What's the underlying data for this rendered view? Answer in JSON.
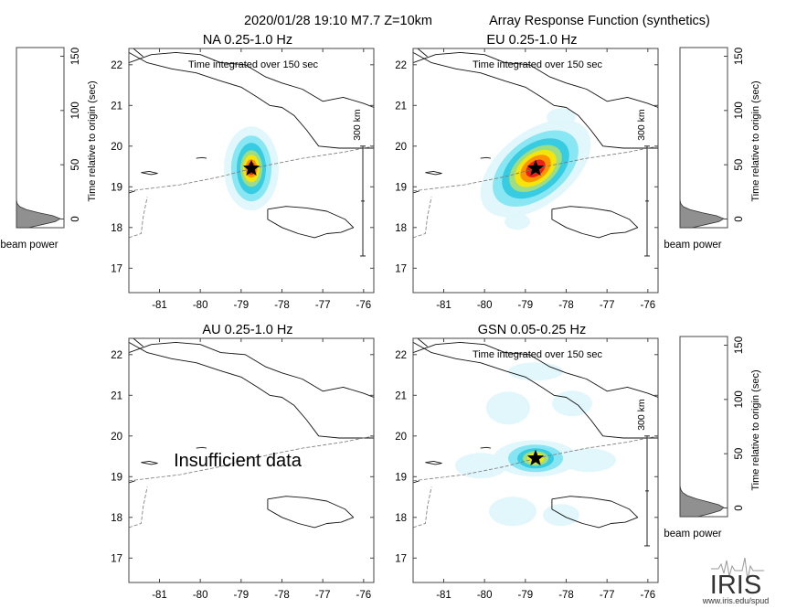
{
  "header": {
    "event": "2020/01/28 19:10  M7.7  Z=10km",
    "title": "Array Response Function (synthetics)"
  },
  "axis_labels": {
    "beam_ylabel": "Time relative to origin (sec)",
    "beam_xlabel": "beam power",
    "scale_bar": "300 km"
  },
  "insufficient_text": "Insufficient data",
  "logo": {
    "text": "IRIS",
    "url": "www.iris.edu/spud"
  },
  "colors": {
    "outer": "#dff6fb",
    "cyan": "#7fe3f2",
    "mid": "#2fc9e0",
    "green": "#a8e07a",
    "yellow": "#ffe600",
    "orange": "#ff8a00",
    "red": "#e8161c",
    "beam_fill": "#909090"
  },
  "chart_data": [
    {
      "type": "heatmap",
      "id": "NA",
      "title": "NA  0.25-1.0 Hz",
      "subtitle": "Time integrated over 150 sec",
      "xlim": [
        -81.75,
        -75.75
      ],
      "ylim": [
        16.4,
        22.4
      ],
      "x_ticks": [
        -81,
        -80,
        -79,
        -78,
        -77,
        -76
      ],
      "y_ticks": [
        17,
        18,
        19,
        20,
        21,
        22
      ],
      "epicenter": {
        "lon": -78.75,
        "lat": 19.45
      },
      "peak_level": "red",
      "beam": {
        "ylabel": "Time relative to origin (sec)",
        "y_ticks": [
          0,
          50,
          100,
          150
        ],
        "ylim": [
          -8,
          158
        ],
        "peak_time": 0,
        "width": 5,
        "side": "left"
      }
    },
    {
      "type": "heatmap",
      "id": "EU",
      "title": "EU  0.25-1.0 Hz",
      "subtitle": "Time integrated over 150 sec",
      "xlim": [
        -81.75,
        -75.75
      ],
      "ylim": [
        16.4,
        22.4
      ],
      "x_ticks": [
        -81,
        -80,
        -79,
        -78,
        -77,
        -76
      ],
      "y_ticks": [
        17,
        18,
        19,
        20,
        21,
        22
      ],
      "epicenter": {
        "lon": -78.75,
        "lat": 19.45
      },
      "peak_level": "red",
      "beam": {
        "ylabel": "Time relative to origin (sec)",
        "y_ticks": [
          0,
          50,
          100,
          150
        ],
        "ylim": [
          -8,
          158
        ],
        "peak_time": 0,
        "width": 5,
        "side": "right"
      }
    },
    {
      "type": "heatmap",
      "id": "AU",
      "title": "AU  0.25-1.0 Hz",
      "subtitle": "",
      "xlim": [
        -81.75,
        -75.75
      ],
      "ylim": [
        16.4,
        22.4
      ],
      "x_ticks": [
        -81,
        -80,
        -79,
        -78,
        -77,
        -76
      ],
      "y_ticks": [
        17,
        18,
        19,
        20,
        21,
        22
      ],
      "epicenter": null,
      "peak_level": "none",
      "beam": null
    },
    {
      "type": "heatmap",
      "id": "GSN",
      "title": "GSN  0.05-0.25 Hz",
      "subtitle": "Time integrated over 150 sec",
      "xlim": [
        -81.75,
        -75.75
      ],
      "ylim": [
        16.4,
        22.4
      ],
      "x_ticks": [
        -81,
        -80,
        -79,
        -78,
        -77,
        -76
      ],
      "y_ticks": [
        17,
        18,
        19,
        20,
        21,
        22
      ],
      "epicenter": {
        "lon": -78.75,
        "lat": 19.45
      },
      "peak_level": "yellow",
      "beam": {
        "ylabel": "Time relative to origin (sec)",
        "y_ticks": [
          0,
          50,
          100,
          150
        ],
        "ylim": [
          -8,
          158
        ],
        "peak_time": 0,
        "width": 6,
        "side": "right"
      }
    }
  ]
}
